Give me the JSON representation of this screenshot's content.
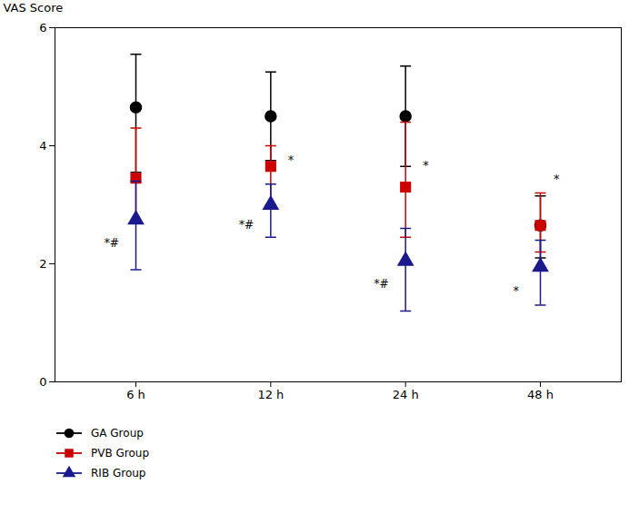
{
  "chart_data": {
    "type": "errorbar",
    "x": [
      1,
      2,
      3,
      4
    ],
    "xlim": [
      0.4,
      4.6
    ],
    "xticks": [
      {
        "value": 1,
        "label": "6 h"
      },
      {
        "value": 2,
        "label": "12 h"
      },
      {
        "value": 3,
        "label": "24 h"
      },
      {
        "value": 4,
        "label": "48 h"
      }
    ],
    "ylabel": "VAS Score",
    "ylim": [
      0,
      6
    ],
    "yticks": [
      0,
      2,
      4,
      6
    ],
    "grid": false,
    "series": [
      {
        "name": "GA Group",
        "color": "#000000",
        "marker": "circle",
        "values": [
          4.65,
          4.5,
          4.5,
          2.65
        ],
        "err_lo": [
          1.1,
          0.75,
          0.85,
          0.55
        ],
        "err_hi": [
          0.9,
          0.75,
          0.85,
          0.5
        ]
      },
      {
        "name": "PVB Group",
        "color": "#cc0000",
        "marker": "square",
        "values": [
          3.45,
          3.65,
          3.3,
          2.65
        ],
        "err_lo": [
          0.75,
          0.65,
          0.85,
          0.45
        ],
        "err_hi": [
          0.85,
          0.35,
          1.1,
          0.55
        ]
      },
      {
        "name": "RIB Group",
        "color": "#1a1a8c",
        "marker": "triangle",
        "values": [
          2.75,
          3.0,
          2.05,
          1.95
        ],
        "err_lo": [
          0.85,
          0.55,
          0.85,
          0.65
        ],
        "err_hi": [
          0.65,
          0.35,
          0.55,
          0.45
        ]
      }
    ],
    "annotations": [
      {
        "text": "*",
        "x": 2.15,
        "y": 3.82
      },
      {
        "text": "*",
        "x": 3.15,
        "y": 3.72
      },
      {
        "text": "*",
        "x": 4.12,
        "y": 3.5
      },
      {
        "text": "*#",
        "x": 0.82,
        "y": 2.42
      },
      {
        "text": "*#",
        "x": 1.82,
        "y": 2.72
      },
      {
        "text": "*#",
        "x": 2.82,
        "y": 1.72
      },
      {
        "text": "*",
        "x": 3.82,
        "y": 1.6
      }
    ]
  }
}
